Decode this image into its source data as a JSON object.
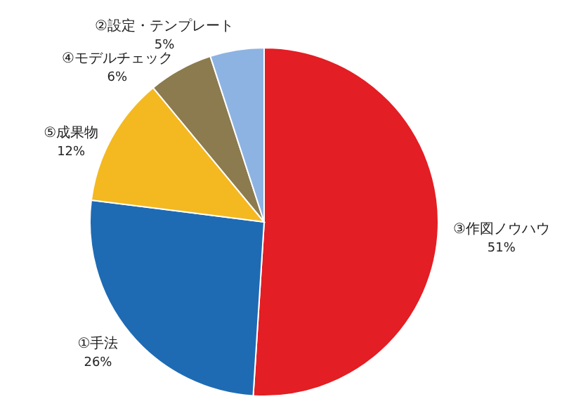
{
  "chart_data": {
    "type": "pie",
    "categories": [
      "③作図ノウハウ",
      "①手法",
      "⑤成果物",
      "④モデルチェック",
      "②設定・テンプレート"
    ],
    "values": [
      51,
      26,
      12,
      6,
      5
    ],
    "colors": [
      "#e31e24",
      "#1e6bb4",
      "#f4b920",
      "#8b7b4e",
      "#8db3e2"
    ],
    "value_labels": [
      "51%",
      "26%",
      "12%",
      "6%",
      "5%"
    ],
    "legend": false
  }
}
